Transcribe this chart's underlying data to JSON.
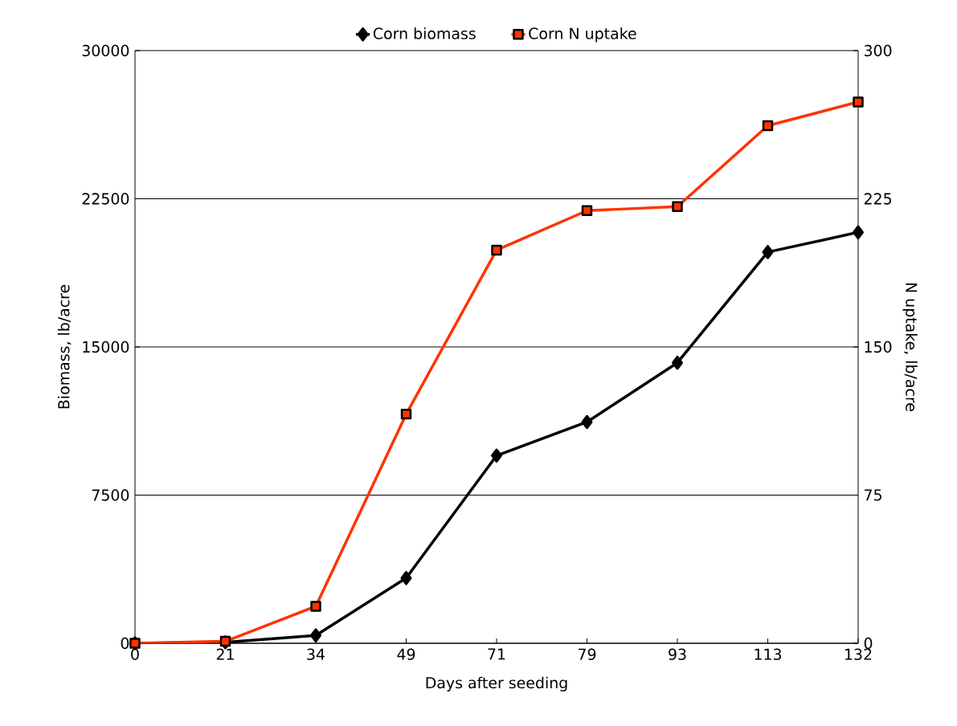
{
  "chart_data": {
    "type": "line",
    "xlabel": "Days after seeding",
    "ylabel": "Biomass, lb/acre",
    "y2label": "N uptake, lb/acre",
    "categories": [
      "0",
      "21",
      "34",
      "49",
      "71",
      "79",
      "93",
      "113",
      "132"
    ],
    "series": [
      {
        "name": "Corn biomass",
        "color": "#000000",
        "marker": "diamond",
        "values": [
          0,
          50,
          400,
          3300,
          9500,
          11200,
          14200,
          19800,
          20800
        ]
      },
      {
        "name": "Corn N uptake",
        "color": "#ff3300",
        "marker": "square",
        "axis": "y2",
        "values": [
          0,
          1,
          18.7,
          116,
          199,
          219,
          221,
          262,
          274
        ]
      }
    ],
    "ylim": [
      0,
      30000
    ],
    "yticks": [
      0,
      7500,
      15000,
      22500,
      30000
    ],
    "y2lim": [
      0,
      300
    ],
    "y2ticks": [
      0,
      75,
      150,
      225,
      300
    ],
    "grid": "y",
    "legend": "top",
    "line_style": "solid"
  }
}
